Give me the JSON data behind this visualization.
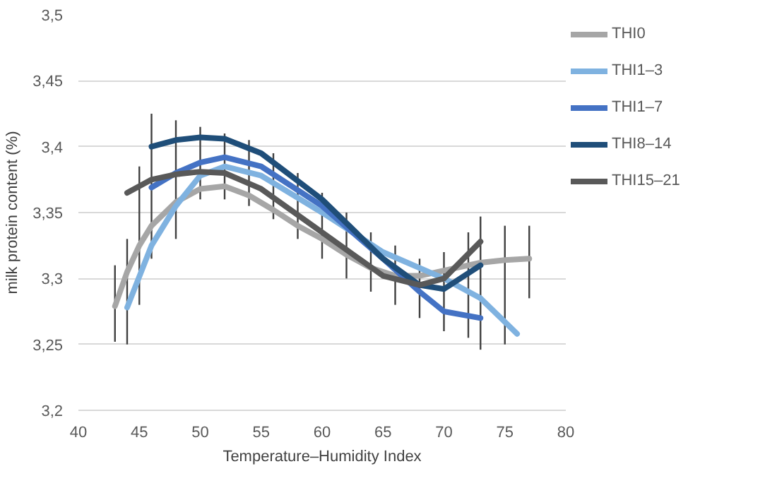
{
  "chart_data": {
    "type": "line",
    "xlabel": "Temperature–Humidity Index",
    "ylabel": "milk protein content (%)",
    "xlim": [
      40,
      80
    ],
    "xticks": [
      40,
      45,
      50,
      55,
      60,
      65,
      70,
      75,
      80
    ],
    "ylim": [
      3.2,
      3.5
    ],
    "yticks": [
      {
        "value": 3.2,
        "label": "3,2"
      },
      {
        "value": 3.25,
        "label": "3,25"
      },
      {
        "value": 3.3,
        "label": "3,3"
      },
      {
        "value": 3.35,
        "label": "3,35"
      },
      {
        "value": 3.4,
        "label": "3,4"
      },
      {
        "value": 3.45,
        "label": "3,45"
      },
      {
        "value": 3.5,
        "label": "3,5"
      }
    ],
    "grid": "y",
    "legend": "right",
    "marker": "none",
    "line_style": "solid",
    "series": [
      {
        "name": "THI0",
        "color": "#a6a6a6",
        "x": [
          43,
          44,
          45,
          46,
          48,
          50,
          52,
          54,
          56,
          58,
          60,
          62,
          64,
          66,
          68,
          70,
          72,
          73,
          75,
          77
        ],
        "values": [
          3.279,
          3.305,
          3.325,
          3.34,
          3.358,
          3.368,
          3.37,
          3.363,
          3.352,
          3.34,
          3.33,
          3.318,
          3.308,
          3.302,
          3.302,
          3.306,
          3.31,
          3.312,
          3.314,
          3.315
        ],
        "errors": [
          [
            3.252,
            3.31
          ],
          [
            3.25,
            3.33
          ],
          [
            3.28,
            3.385
          ],
          [
            3.315,
            3.425
          ],
          [
            3.33,
            3.42
          ],
          [
            3.36,
            3.415
          ],
          [
            3.36,
            3.41
          ],
          [
            3.355,
            3.405
          ],
          [
            3.345,
            3.395
          ],
          [
            3.33,
            3.38
          ],
          [
            3.315,
            3.365
          ],
          [
            3.3,
            3.35
          ],
          [
            3.29,
            3.335
          ],
          [
            3.28,
            3.325
          ],
          [
            3.27,
            3.315
          ],
          [
            3.26,
            3.32
          ],
          [
            3.255,
            3.335
          ],
          [
            3.246,
            3.347
          ],
          [
            3.25,
            3.34
          ],
          [
            3.285,
            3.34
          ]
        ]
      },
      {
        "name": "THI1–3",
        "color": "#7fb2e0",
        "x": [
          44,
          46,
          48,
          50,
          52,
          55,
          60,
          65,
          70,
          73,
          76
        ],
        "values": [
          3.278,
          3.325,
          3.355,
          3.378,
          3.385,
          3.378,
          3.35,
          3.32,
          3.3,
          3.285,
          3.258
        ]
      },
      {
        "name": "THI1–7",
        "color": "#4472c4",
        "x": [
          46,
          48,
          50,
          52,
          55,
          60,
          65,
          68,
          70,
          73
        ],
        "values": [
          3.369,
          3.38,
          3.388,
          3.392,
          3.385,
          3.355,
          3.315,
          3.29,
          3.275,
          3.27
        ]
      },
      {
        "name": "THI8–14",
        "color": "#1f4e79",
        "x": [
          46,
          48,
          50,
          52,
          55,
          60,
          65,
          68,
          70,
          73
        ],
        "values": [
          3.4,
          3.405,
          3.407,
          3.406,
          3.395,
          3.36,
          3.315,
          3.295,
          3.292,
          3.31
        ]
      },
      {
        "name": "THI15–21",
        "color": "#595959",
        "x": [
          44,
          46,
          48,
          50,
          52,
          55,
          60,
          65,
          68,
          70,
          73
        ],
        "values": [
          3.365,
          3.375,
          3.379,
          3.381,
          3.38,
          3.368,
          3.335,
          3.302,
          3.295,
          3.3,
          3.328
        ]
      }
    ]
  }
}
